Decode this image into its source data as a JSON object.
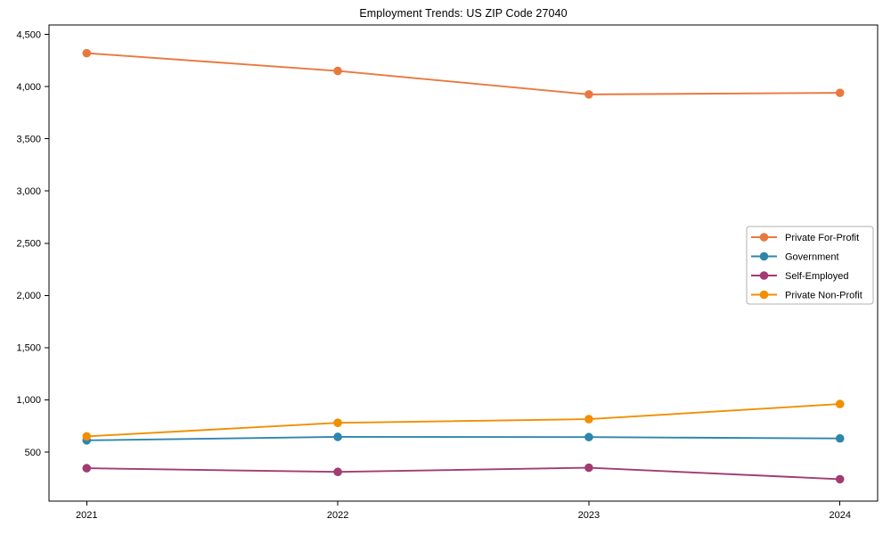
{
  "figure": {
    "background": "#ffffff",
    "axis_color": "#000000",
    "tick_label_color": "#000000"
  },
  "chart_data": {
    "type": "line",
    "title": "Employment Trends: US ZIP Code 27040",
    "xlabel": "",
    "ylabel": "",
    "grid": false,
    "x": [
      2021,
      2022,
      2023,
      2024
    ],
    "x_tick_labels": [
      "2021",
      "2022",
      "2023",
      "2024"
    ],
    "y_ticks": [
      500,
      1000,
      1500,
      2000,
      2500,
      3000,
      3500,
      4000,
      4500
    ],
    "y_tick_labels": [
      "500",
      "1,000",
      "1,500",
      "2,000",
      "2,500",
      "3,000",
      "3,500",
      "4,000",
      "4,500"
    ],
    "xlim": [
      2020.85,
      2024.15
    ],
    "ylim": [
      30,
      4590
    ],
    "series": [
      {
        "name": "Private For-Profit",
        "color": "#E8793E",
        "values": [
          4320,
          4150,
          3925,
          3940
        ]
      },
      {
        "name": "Government",
        "color": "#2E86AB",
        "values": [
          612,
          645,
          643,
          630
        ]
      },
      {
        "name": "Self-Employed",
        "color": "#A23B72",
        "values": [
          345,
          310,
          350,
          240
        ]
      },
      {
        "name": "Private Non-Profit",
        "color": "#F18F01",
        "values": [
          650,
          780,
          815,
          960
        ]
      }
    ],
    "legend": {
      "position": "center-right",
      "background": "#ffffff",
      "border_color": "#b0b0b0"
    }
  }
}
